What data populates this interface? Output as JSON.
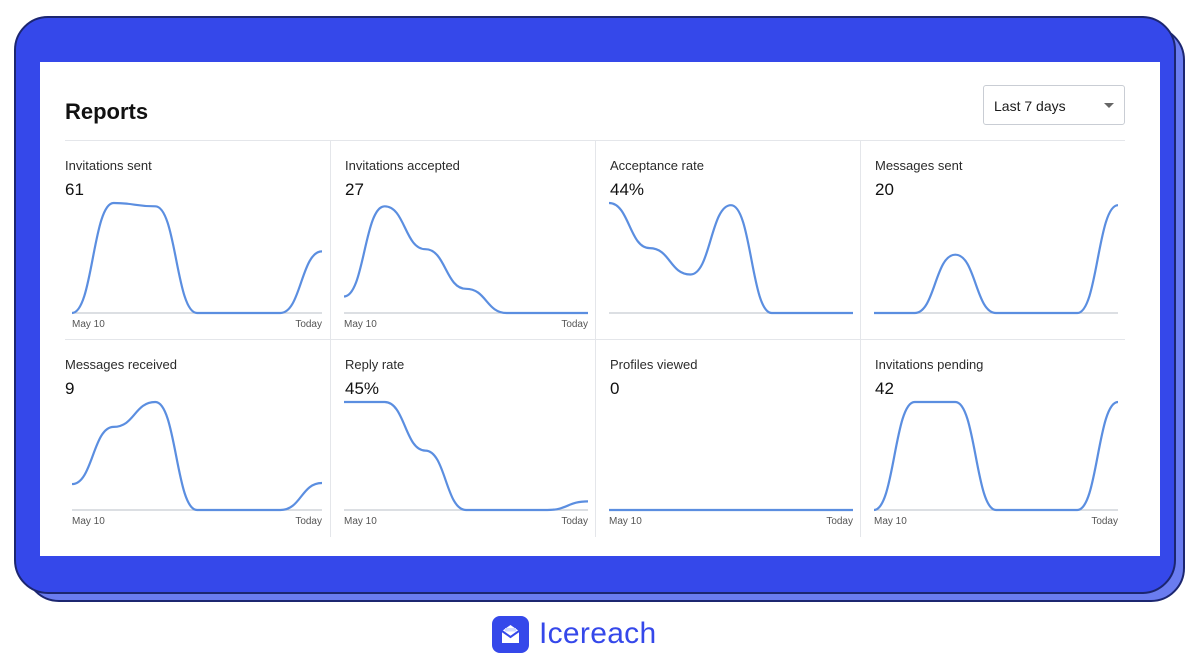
{
  "reports": {
    "title": "Reports",
    "range": {
      "selected": "Last 7 days"
    }
  },
  "brand": {
    "name": "Icereach",
    "color": "#3548ea"
  },
  "colors": {
    "accent": "#3548ea",
    "line": "#5b8ee0",
    "axis": "#c8ccd2"
  },
  "chart_data": [
    {
      "type": "line",
      "title": "Invitations sent",
      "value": "61",
      "x_start": "May 10",
      "x_end": "Today",
      "values": [
        0,
        1.0,
        0.97,
        0,
        0,
        0,
        0.56
      ]
    },
    {
      "type": "line",
      "title": "Invitations accepted",
      "value": "27",
      "x_start": "May 10",
      "x_end": "Today",
      "values": [
        0.15,
        0.97,
        0.58,
        0.22,
        0,
        0,
        0
      ]
    },
    {
      "type": "line",
      "title": "Acceptance rate",
      "value": "44%",
      "x_start": "",
      "x_end": "",
      "values": [
        1.0,
        0.59,
        0.35,
        0.98,
        0,
        0,
        0
      ]
    },
    {
      "type": "line",
      "title": "Messages sent",
      "value": "20",
      "x_start": "",
      "x_end": "",
      "values": [
        0,
        0,
        0.53,
        0,
        0,
        0,
        0.98
      ]
    },
    {
      "type": "line",
      "title": "Messages received",
      "value": "9",
      "x_start": "May 10",
      "x_end": "Today",
      "values": [
        0.24,
        0.77,
        1.0,
        0,
        0,
        0,
        0.25
      ]
    },
    {
      "type": "line",
      "title": "Reply rate",
      "value": "45%",
      "x_start": "May 10",
      "x_end": "Today",
      "values": [
        1.0,
        1.0,
        0.55,
        0,
        0,
        0,
        0.08
      ]
    },
    {
      "type": "line",
      "title": "Profiles viewed",
      "value": "0",
      "x_start": "May 10",
      "x_end": "Today",
      "values": [
        0,
        0,
        0,
        0,
        0,
        0,
        0
      ]
    },
    {
      "type": "line",
      "title": "Invitations pending",
      "value": "42",
      "x_start": "May 10",
      "x_end": "Today",
      "values": [
        0,
        1.0,
        1.0,
        0,
        0,
        0,
        1.0
      ]
    }
  ]
}
